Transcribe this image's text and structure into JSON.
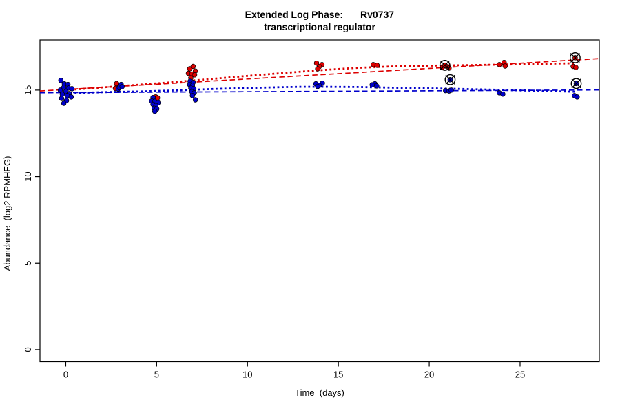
{
  "chart_data": {
    "type": "scatter",
    "title": {
      "line1_left": "Extended Log Phase:",
      "line1_right": "Rv0737",
      "line2": "transcriptional regulator"
    },
    "xlabel": "Time  (days)",
    "ylabel": "Abundance  (log2 RPMHEG)",
    "xlim": [
      -1.42,
      29.36
    ],
    "ylim": [
      -0.7,
      17.9
    ],
    "x_ticks": [
      0,
      5,
      10,
      15,
      20,
      25
    ],
    "y_ticks": [
      0,
      5,
      10,
      15
    ],
    "grid": false,
    "legend": "none",
    "colors": {
      "red_series": "#DD0000",
      "blue_series": "#0000CC",
      "marker_outline": "#000000",
      "flag_marker": "#000000"
    },
    "series": [
      {
        "name": "condition-red",
        "color": "#DD0000",
        "points": [
          [
            2.8,
            15.38
          ],
          [
            2.99,
            15.22
          ],
          [
            2.73,
            15.1
          ],
          [
            4.95,
            14.61
          ],
          [
            5.05,
            14.55
          ],
          [
            6.82,
            16.23
          ],
          [
            7.01,
            16.37
          ],
          [
            7.13,
            16.1
          ],
          [
            6.75,
            15.97
          ],
          [
            6.94,
            15.93
          ],
          [
            7.09,
            15.88
          ],
          [
            6.88,
            15.7
          ],
          [
            13.8,
            16.56
          ],
          [
            14.1,
            16.47
          ],
          [
            13.95,
            16.36
          ],
          [
            13.86,
            16.23
          ],
          [
            16.92,
            16.47
          ],
          [
            17.13,
            16.43
          ],
          [
            20.71,
            16.3
          ],
          [
            20.91,
            16.39
          ],
          [
            21.09,
            16.27
          ],
          [
            23.86,
            16.47
          ],
          [
            24.12,
            16.6
          ],
          [
            24.18,
            16.39
          ],
          [
            27.92,
            16.37
          ],
          [
            28.07,
            16.31
          ]
        ]
      },
      {
        "name": "condition-blue",
        "color": "#0000CC",
        "points": [
          [
            -0.27,
            15.56
          ],
          [
            -0.08,
            15.36
          ],
          [
            0.12,
            15.33
          ],
          [
            -0.11,
            15.16
          ],
          [
            0.15,
            15.12
          ],
          [
            -0.3,
            15.0
          ],
          [
            0.0,
            14.92
          ],
          [
            0.19,
            14.8
          ],
          [
            -0.19,
            14.76
          ],
          [
            0.08,
            14.68
          ],
          [
            -0.23,
            14.52
          ],
          [
            0.04,
            14.4
          ],
          [
            -0.11,
            14.24
          ],
          [
            0.34,
            15.08
          ],
          [
            0.3,
            14.6
          ],
          [
            3.05,
            15.33
          ],
          [
            2.88,
            15.06
          ],
          [
            2.95,
            15.15
          ],
          [
            3.1,
            15.2
          ],
          [
            4.8,
            14.57
          ],
          [
            4.73,
            14.37
          ],
          [
            4.9,
            14.35
          ],
          [
            5.08,
            14.27
          ],
          [
            4.8,
            14.18
          ],
          [
            4.96,
            14.11
          ],
          [
            4.86,
            13.95
          ],
          [
            5.01,
            13.91
          ],
          [
            4.9,
            13.78
          ],
          [
            6.84,
            15.51
          ],
          [
            7.01,
            15.44
          ],
          [
            6.82,
            15.31
          ],
          [
            6.97,
            15.27
          ],
          [
            6.88,
            15.11
          ],
          [
            7.05,
            15.08
          ],
          [
            6.94,
            14.91
          ],
          [
            7.07,
            14.84
          ],
          [
            6.97,
            14.68
          ],
          [
            7.13,
            14.44
          ],
          [
            13.76,
            15.37
          ],
          [
            14.12,
            15.4
          ],
          [
            13.95,
            15.27
          ],
          [
            13.86,
            15.21
          ],
          [
            17.01,
            15.37
          ],
          [
            16.86,
            15.31
          ],
          [
            17.11,
            15.24
          ],
          [
            20.9,
            14.97
          ],
          [
            21.09,
            14.95
          ],
          [
            21.21,
            15.0
          ],
          [
            23.86,
            14.84
          ],
          [
            24.05,
            14.77
          ],
          [
            27.99,
            14.68
          ],
          [
            28.14,
            14.6
          ]
        ]
      }
    ],
    "flagged_points": [
      {
        "series": "condition-red",
        "x": 20.86,
        "y": 16.43
      },
      {
        "series": "condition-red",
        "x": 28.03,
        "y": 16.87
      },
      {
        "series": "condition-blue",
        "x": 21.15,
        "y": 15.6
      },
      {
        "series": "condition-blue",
        "x": 28.09,
        "y": 15.38
      }
    ],
    "trend_lines": [
      {
        "name": "red-linear-fit",
        "color": "#DD0000",
        "style": "longdash",
        "x": [
          -1.42,
          29.36
        ],
        "y": [
          14.95,
          16.82
        ]
      },
      {
        "name": "blue-linear-fit",
        "color": "#0000CC",
        "style": "longdash",
        "x": [
          -1.42,
          29.36
        ],
        "y": [
          14.85,
          15.01
        ]
      },
      {
        "name": "red-smooth-fit",
        "color": "#DD0000",
        "style": "dotted",
        "points": [
          [
            0,
            15.0
          ],
          [
            2,
            15.15
          ],
          [
            4,
            15.31
          ],
          [
            6,
            15.47
          ],
          [
            8,
            15.64
          ],
          [
            10,
            15.82
          ],
          [
            12,
            15.99
          ],
          [
            14,
            16.15
          ],
          [
            16,
            16.28
          ],
          [
            18,
            16.37
          ],
          [
            20,
            16.41
          ],
          [
            22,
            16.44
          ],
          [
            24,
            16.47
          ],
          [
            26,
            16.51
          ],
          [
            28,
            16.55
          ]
        ]
      },
      {
        "name": "blue-smooth-fit",
        "color": "#0000CC",
        "style": "dotted",
        "points": [
          [
            0,
            14.82
          ],
          [
            2,
            14.88
          ],
          [
            4,
            14.92
          ],
          [
            6,
            14.98
          ],
          [
            8,
            15.06
          ],
          [
            10,
            15.12
          ],
          [
            12,
            15.17
          ],
          [
            13,
            15.19
          ],
          [
            14,
            15.19
          ],
          [
            16,
            15.18
          ],
          [
            18,
            15.14
          ],
          [
            20,
            15.1
          ],
          [
            22,
            15.06
          ],
          [
            24,
            15.01
          ],
          [
            26,
            14.96
          ],
          [
            28,
            14.91
          ]
        ]
      }
    ]
  }
}
